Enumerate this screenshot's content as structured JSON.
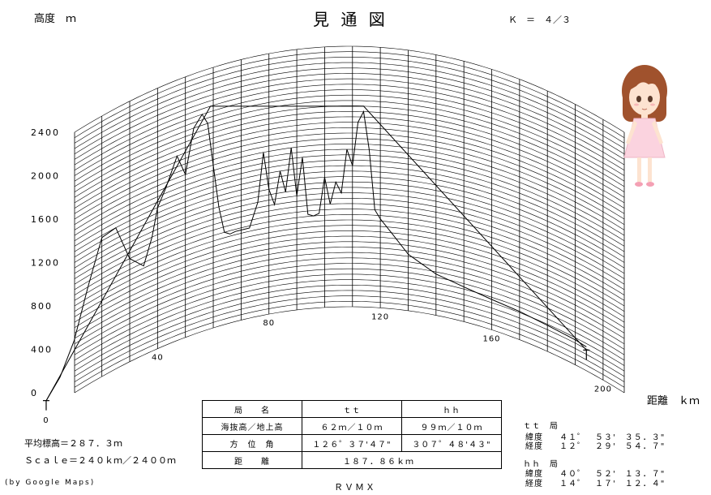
{
  "header": {
    "title": "見 通 図",
    "y_unit_label": "高度　ｍ",
    "k_factor": "Ｋ　＝　４／３",
    "x_unit_label": "距離　ｋｍ"
  },
  "chart_data": {
    "type": "line",
    "title": "見 通 図",
    "xlabel": "距離　ｋｍ",
    "ylabel": "高度　ｍ",
    "xlim": [
      0,
      200
    ],
    "ylim": [
      0,
      2400
    ],
    "x_ticks": [
      {
        "value": 0,
        "label": "0"
      },
      {
        "value": 40,
        "label": "40"
      },
      {
        "value": 80,
        "label": "80"
      },
      {
        "value": 120,
        "label": "120"
      },
      {
        "value": 160,
        "label": "160"
      },
      {
        "value": 200,
        "label": "200"
      }
    ],
    "y_ticks": [
      {
        "value": 0,
        "label": "0"
      },
      {
        "value": 400,
        "label": "400"
      },
      {
        "value": 800,
        "label": "800"
      },
      {
        "value": 1200,
        "label": "1200"
      },
      {
        "value": 1600,
        "label": "1600"
      },
      {
        "value": 2000,
        "label": "2000"
      },
      {
        "value": 2400,
        "label": "2400"
      }
    ],
    "terrain": {
      "x": [
        0,
        5,
        10,
        15,
        20,
        25,
        30,
        35,
        38,
        40,
        43,
        47,
        50,
        53,
        56,
        58,
        60,
        62,
        64,
        66,
        68,
        70,
        73,
        76,
        78,
        80,
        82,
        84,
        86,
        88,
        90,
        92,
        94,
        96,
        98,
        100,
        102,
        104,
        106,
        108,
        110,
        112,
        114,
        116,
        118,
        120,
        124,
        130,
        140,
        150,
        160,
        170,
        180,
        190,
        194
      ],
      "y": [
        100,
        230,
        480,
        900,
        1280,
        1300,
        950,
        820,
        1050,
        1300,
        1450,
        1700,
        1500,
        1900,
        2000,
        1900,
        1500,
        1100,
        850,
        820,
        830,
        830,
        830,
        1050,
        1500,
        1150,
        1000,
        1300,
        1100,
        1500,
        1050,
        1400,
        870,
        850,
        870,
        1200,
        950,
        1150,
        1050,
        1450,
        1300,
        1700,
        1800,
        1450,
        900,
        820,
        700,
        520,
        380,
        320,
        280,
        260,
        240,
        230,
        220
      ]
    },
    "sightlines": [
      {
        "x": [
          0,
          59,
          114,
          194
        ],
        "y": [
          100,
          2050,
          1850,
          190
        ]
      }
    ],
    "stations": [
      {
        "x": 0,
        "y": 100
      },
      {
        "x": 194,
        "y": 190
      }
    ]
  },
  "info_table": {
    "rows": [
      {
        "label": "局　　名",
        "v1": "ｔｔ",
        "v2": "ｈｈ"
      },
      {
        "label": "海抜高／地上高",
        "v1": "６２ｍ／１０ｍ",
        "v2": "９９ｍ／１０ｍ"
      },
      {
        "label": "方　位　角",
        "v1": "１２６゜３７'４７\"",
        "v2": "３０７゜４８'４３\""
      },
      {
        "label": "距　　離",
        "v1": "１８７．８６ｋｍ"
      }
    ]
  },
  "left_info": {
    "avg_height": "平均標高＝２８７．３ｍ",
    "scale": "Ｓｃａｌｅ＝２４０ｋｍ／２４００ｍ",
    "credit": "(by Google Maps)",
    "footer": "ＲＶＭＸ"
  },
  "coords": {
    "tt": {
      "name": "ｔｔ　局",
      "lat_label": "緯度",
      "lat": "４１゜　５３'　３５．３\"",
      "lon_label": "経度",
      "lon": "１２゜　２９'　５４．７\""
    },
    "hh": {
      "name": "ｈｈ　局",
      "lat_label": "緯度",
      "lat": "４０゜　５２'　１３．７\"",
      "lon_label": "経度",
      "lon": "１４゜　１７'　１２．４\""
    }
  },
  "mascot": {
    "icon": "girl-illustration"
  }
}
